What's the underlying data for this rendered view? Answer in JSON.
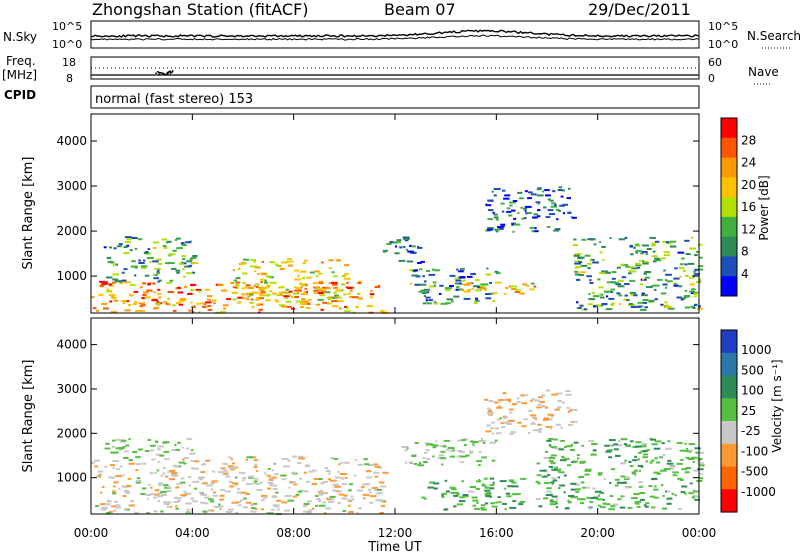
{
  "header": {
    "station": "Zhongshan Station (fitACF)",
    "beam": "Beam 07",
    "date": "29/Dec/2011"
  },
  "noise_panel": {
    "left_label": "N.Sky",
    "right_label": "N.Search",
    "tick_top": "10^5",
    "tick_bottom": "10^0"
  },
  "freq_panel": {
    "left_label_1": "Freq.",
    "left_label_2": "[MHz]",
    "tick_top": "18",
    "tick_bottom": "8",
    "right_label": "Nave",
    "right_tick_top": "60",
    "right_tick_bottom": "0"
  },
  "cpid_panel": {
    "label": "CPID",
    "text": "normal (fast stereo) 153"
  },
  "power_scale": {
    "title": "Power [dB]",
    "ticks": [
      "28",
      "24",
      "20",
      "16",
      "12",
      "8",
      "4"
    ],
    "colors": [
      "#ff0000",
      "#ff5500",
      "#ff9900",
      "#ffc000",
      "#b0e000",
      "#40b040",
      "#2e8b57",
      "#1c4fb8",
      "#0000ff"
    ]
  },
  "velocity_scale": {
    "title": "Velocity [m s⁻¹]",
    "ticks": [
      "1000",
      "500",
      "100",
      "25",
      "-25",
      "-100",
      "-500",
      "-1000"
    ],
    "colors": [
      "#1f3fc0",
      "#2a78a8",
      "#2e8b57",
      "#55c040",
      "#c8c8c8",
      "#ff9933",
      "#ff6600",
      "#ff0000"
    ]
  },
  "x_axis": {
    "title": "Time UT",
    "ticks": [
      "00:00",
      "04:00",
      "08:00",
      "12:00",
      "16:00",
      "20:00",
      "00:00"
    ]
  },
  "chart_data": [
    {
      "type": "heatmap",
      "title": "Power",
      "ylabel": "Slant Range [km]",
      "xlabel": "",
      "ylim": [
        180,
        4600
      ],
      "y_ticks": [
        1000,
        2000,
        3000,
        4000
      ],
      "x_hours": [
        0,
        24
      ],
      "colorbar": {
        "label": "Power [dB]",
        "range": [
          0,
          30
        ]
      },
      "echo_regions": [
        {
          "t0": 0.0,
          "t1": 11.5,
          "r0": 200,
          "r1": 900,
          "value": 22
        },
        {
          "t0": 0.5,
          "t1": 4.0,
          "r0": 900,
          "r1": 1900,
          "value": 10
        },
        {
          "t0": 5.5,
          "t1": 10.0,
          "r0": 400,
          "r1": 1400,
          "value": 18
        },
        {
          "t0": 11.5,
          "t1": 13.0,
          "r0": 1300,
          "r1": 1900,
          "value": 6
        },
        {
          "t0": 12.5,
          "t1": 16.0,
          "r0": 400,
          "r1": 1200,
          "value": 8
        },
        {
          "t0": 14.5,
          "t1": 17.5,
          "r0": 600,
          "r1": 900,
          "value": 18
        },
        {
          "t0": 15.5,
          "t1": 19.0,
          "r0": 2000,
          "r1": 3000,
          "value": 6
        },
        {
          "t0": 19.0,
          "t1": 24.0,
          "r0": 250,
          "r1": 1900,
          "value": 10
        }
      ]
    },
    {
      "type": "heatmap",
      "title": "Velocity",
      "ylabel": "Slant Range [km]",
      "xlabel": "Time UT",
      "ylim": [
        180,
        4600
      ],
      "y_ticks": [
        1000,
        2000,
        3000,
        4000
      ],
      "x_hours": [
        0,
        24
      ],
      "colorbar": {
        "label": "Velocity [m s⁻¹]",
        "range": [
          -1000,
          1000
        ]
      },
      "echo_regions": [
        {
          "t0": 0.0,
          "t1": 11.5,
          "r0": 200,
          "r1": 1500,
          "value": -150
        },
        {
          "t0": 0.3,
          "t1": 4.0,
          "r0": 1500,
          "r1": 1900,
          "value": 0
        },
        {
          "t0": 12.0,
          "t1": 16.0,
          "r0": 1300,
          "r1": 1900,
          "value": 0
        },
        {
          "t0": 13.0,
          "t1": 17.0,
          "r0": 300,
          "r1": 1000,
          "value": 200
        },
        {
          "t0": 15.5,
          "t1": 19.0,
          "r0": 2000,
          "r1": 3000,
          "value": -200
        },
        {
          "t0": 17.5,
          "t1": 24.0,
          "r0": 300,
          "r1": 1900,
          "value": 150
        }
      ]
    }
  ]
}
